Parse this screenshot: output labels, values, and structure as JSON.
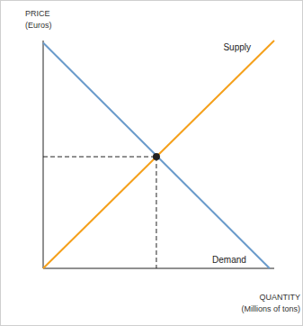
{
  "chart_data": {
    "type": "line",
    "ylabel": [
      "PRICE",
      "(Euros)"
    ],
    "xlabel": [
      "QUANTITY",
      "(Millions of tons)"
    ],
    "xlim": [
      0,
      10
    ],
    "ylim": [
      0,
      10
    ],
    "xticks": [],
    "yticks": [],
    "tick_labels": false,
    "grid": false,
    "series": [
      {
        "name": "Supply",
        "color": "#f5a01a",
        "x": [
          0,
          10
        ],
        "values": [
          0,
          10
        ]
      },
      {
        "name": "Demand",
        "color": "#6a9bcb",
        "x": [
          0,
          9.8
        ],
        "values": [
          9.9,
          0
        ]
      }
    ],
    "equilibrium": {
      "x": 4.9,
      "y": 4.9,
      "line_style": "dashed"
    }
  }
}
